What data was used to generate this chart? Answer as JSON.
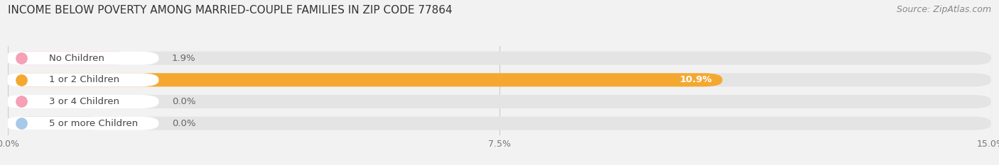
{
  "title": "INCOME BELOW POVERTY AMONG MARRIED-COUPLE FAMILIES IN ZIP CODE 77864",
  "source": "Source: ZipAtlas.com",
  "categories": [
    "No Children",
    "1 or 2 Children",
    "3 or 4 Children",
    "5 or more Children"
  ],
  "values": [
    1.9,
    10.9,
    0.0,
    0.0
  ],
  "bar_colors": [
    "#f5a0b5",
    "#f5a830",
    "#f5a0b5",
    "#a8c8e8"
  ],
  "label_dot_colors": [
    "#f5a0b5",
    "#f5a830",
    "#f5a0b5",
    "#a8c8e8"
  ],
  "zero_bar_colors": [
    "#f5a0b5",
    "#f5a830",
    "#f5a0b5",
    "#a8c8e8"
  ],
  "xlim": [
    0,
    15.0
  ],
  "xticks": [
    0.0,
    7.5,
    15.0
  ],
  "xticklabels": [
    "0.0%",
    "7.5%",
    "15.0%"
  ],
  "background_color": "#f2f2f2",
  "bar_bg_color": "#e4e4e4",
  "bar_height": 0.62,
  "label_fontsize": 9.5,
  "title_fontsize": 11,
  "source_fontsize": 9
}
